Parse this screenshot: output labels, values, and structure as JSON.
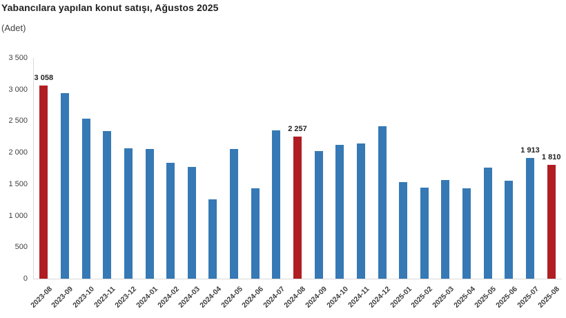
{
  "chart_data": {
    "type": "bar",
    "title": "Yabancılara yapılan konut satışı, Ağustos 2025",
    "unit_label": "(Adet)",
    "xlabel": "",
    "ylabel": "",
    "ylim": [
      0,
      3500
    ],
    "ytick_step": 500,
    "grid": false,
    "legend": null,
    "number_format": "space-thousands",
    "categories": [
      "2023-08",
      "2023-09",
      "2023-10",
      "2023-11",
      "2023-12",
      "2024-01",
      "2024-02",
      "2024-03",
      "2024-04",
      "2024-05",
      "2024-06",
      "2024-07",
      "2024-08",
      "2024-09",
      "2024-10",
      "2024-11",
      "2024-12",
      "2025-01",
      "2025-02",
      "2025-03",
      "2025-04",
      "2025-05",
      "2025-06",
      "2025-07",
      "2025-08"
    ],
    "values": [
      3058,
      2940,
      2535,
      2345,
      2065,
      2060,
      1840,
      1775,
      1260,
      2055,
      1430,
      2350,
      2257,
      2020,
      2120,
      2145,
      2420,
      1535,
      1445,
      1565,
      1430,
      1765,
      1555,
      1913,
      1810
    ],
    "highlighted_indices": [
      0,
      12,
      24
    ],
    "value_labeled_indices": [
      0,
      12,
      23,
      24
    ],
    "value_labels_shown": [
      "3 058",
      "2 257",
      "1 913",
      "1 810"
    ],
    "colors": {
      "bar_default": "#3679B5",
      "bar_highlight": "#B01E24",
      "axis_line": "#D9D9D9",
      "tick_text": "#404040",
      "title_text": "#1F1F1F"
    }
  }
}
